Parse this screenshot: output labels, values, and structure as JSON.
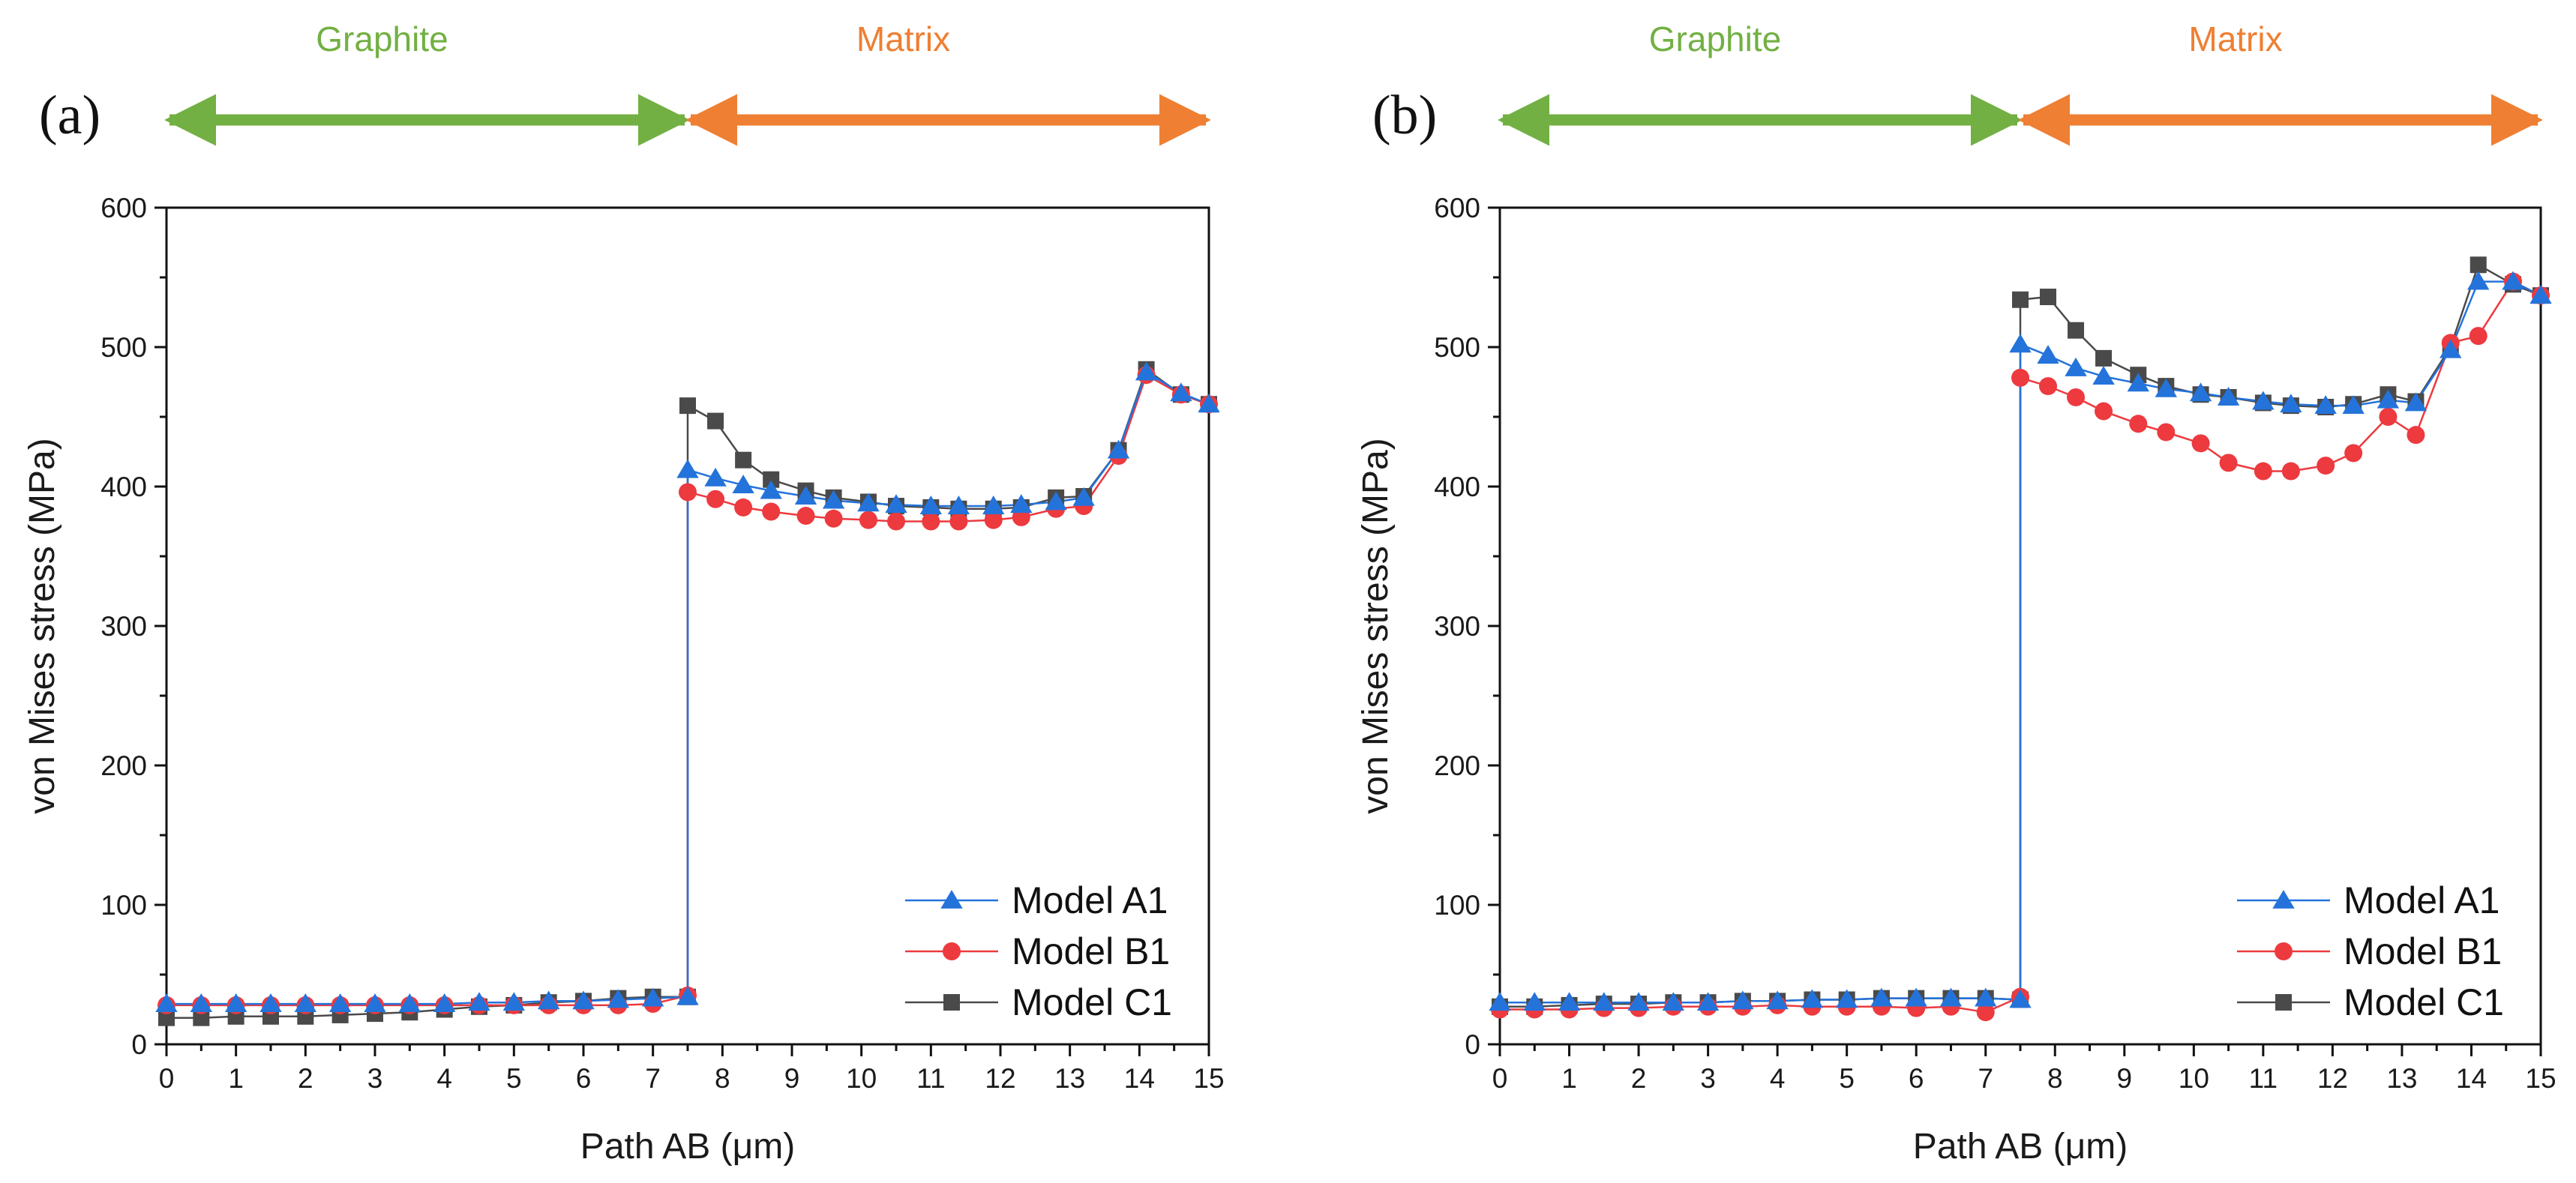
{
  "colors": {
    "graphite": "#72b043",
    "matrix": "#ee7f33",
    "model_a1": "#2473db",
    "model_b1": "#ec3a3f",
    "model_c1": "#4a4a4a"
  },
  "chart_data": [
    {
      "panel_label": "(a)",
      "type": "line",
      "xlabel": "Path AB (μm)",
      "ylabel": "von Mises stress (MPa)",
      "xlim": [
        0,
        15
      ],
      "ylim": [
        0,
        600
      ],
      "xticks": [
        0,
        1,
        2,
        3,
        4,
        5,
        6,
        7,
        8,
        9,
        10,
        11,
        12,
        13,
        14,
        15
      ],
      "yticks": [
        0,
        100,
        200,
        300,
        400,
        500,
        600
      ],
      "grid": false,
      "legend_position": "bottom-right",
      "regions": [
        {
          "label": "Graphite",
          "x_start": 0,
          "x_end": 7.5,
          "color": "#72b043"
        },
        {
          "label": "Matrix",
          "x_start": 7.5,
          "x_end": 15,
          "color": "#ee7f33"
        }
      ],
      "series": [
        {
          "name": "Model A1",
          "color": "#2473db",
          "marker": "triangle",
          "x": [
            0,
            0.5,
            1,
            1.5,
            2,
            2.5,
            3,
            3.5,
            4,
            4.5,
            5,
            5.5,
            6,
            6.5,
            7,
            7.5,
            7.5,
            7.9,
            8.3,
            8.7,
            9.2,
            9.6,
            10.1,
            10.5,
            11,
            11.4,
            11.9,
            12.3,
            12.8,
            13.2,
            13.7,
            14.1,
            14.6,
            15
          ],
          "y": [
            29,
            29,
            29,
            29,
            29,
            29,
            29,
            29,
            29,
            30,
            30,
            31,
            31,
            32,
            33,
            34,
            412,
            406,
            401,
            397,
            393,
            390,
            388,
            387,
            386,
            386,
            386,
            387,
            389,
            392,
            426,
            482,
            467,
            459
          ]
        },
        {
          "name": "Model B1",
          "color": "#ec3a3f",
          "marker": "circle",
          "x": [
            0,
            0.5,
            1,
            1.5,
            2,
            2.5,
            3,
            3.5,
            4,
            4.5,
            5,
            5.5,
            6,
            6.5,
            7,
            7.5,
            7.5,
            7.9,
            8.3,
            8.7,
            9.2,
            9.6,
            10.1,
            10.5,
            11,
            11.4,
            11.9,
            12.3,
            12.8,
            13.2,
            13.7,
            14.1,
            14.6,
            15
          ],
          "y": [
            28,
            28,
            28,
            28,
            28,
            28,
            28,
            28,
            28,
            28,
            28,
            28,
            28,
            28,
            29,
            35,
            396,
            391,
            385,
            382,
            379,
            377,
            376,
            375,
            375,
            375,
            376,
            378,
            384,
            386,
            422,
            480,
            466,
            459
          ]
        },
        {
          "name": "Model C1",
          "color": "#4a4a4a",
          "marker": "square",
          "x": [
            0,
            0.5,
            1,
            1.5,
            2,
            2.5,
            3,
            3.5,
            4,
            4.5,
            5,
            5.5,
            6,
            6.5,
            7,
            7.5,
            7.5,
            7.9,
            8.3,
            8.7,
            9.2,
            9.6,
            10.1,
            10.5,
            11,
            11.4,
            11.9,
            12.3,
            12.8,
            13.2,
            13.7,
            14.1,
            14.6,
            15
          ],
          "y": [
            19,
            19,
            20,
            20,
            20,
            21,
            22,
            23,
            25,
            27,
            28,
            30,
            31,
            33,
            34,
            34,
            458,
            447,
            419,
            405,
            397,
            392,
            389,
            386,
            385,
            384,
            384,
            385,
            392,
            393,
            426,
            484,
            466,
            459
          ]
        }
      ]
    },
    {
      "panel_label": "(b)",
      "type": "line",
      "xlabel": "Path AB (μm)",
      "ylabel": "von Mises stress (MPa)",
      "xlim": [
        0,
        15
      ],
      "ylim": [
        0,
        600
      ],
      "xticks": [
        0,
        1,
        2,
        3,
        4,
        5,
        6,
        7,
        8,
        9,
        10,
        11,
        12,
        13,
        14,
        15
      ],
      "yticks": [
        0,
        100,
        200,
        300,
        400,
        500,
        600
      ],
      "grid": false,
      "legend_position": "bottom-right",
      "regions": [
        {
          "label": "Graphite",
          "x_start": 0,
          "x_end": 7.5,
          "color": "#72b043"
        },
        {
          "label": "Matrix",
          "x_start": 7.5,
          "x_end": 15,
          "color": "#ee7f33"
        }
      ],
      "series": [
        {
          "name": "Model A1",
          "color": "#2473db",
          "marker": "triangle",
          "x": [
            0,
            0.5,
            1,
            1.5,
            2,
            2.5,
            3,
            3.5,
            4,
            4.5,
            5,
            5.5,
            6,
            6.5,
            7,
            7.5,
            7.5,
            7.9,
            8.3,
            8.7,
            9.2,
            9.6,
            10.1,
            10.5,
            11,
            11.4,
            11.9,
            12.3,
            12.8,
            13.2,
            13.7,
            14.1,
            14.6,
            15
          ],
          "y": [
            30,
            30,
            30,
            30,
            30,
            30,
            30,
            31,
            31,
            32,
            32,
            33,
            33,
            33,
            33,
            32,
            502,
            494,
            485,
            479,
            474,
            470,
            467,
            464,
            461,
            459,
            458,
            458,
            462,
            460,
            498,
            547,
            547,
            537
          ]
        },
        {
          "name": "Model B1",
          "color": "#ec3a3f",
          "marker": "circle",
          "x": [
            0,
            0.5,
            1,
            1.5,
            2,
            2.5,
            3,
            3.5,
            4,
            4.5,
            5,
            5.5,
            6,
            6.5,
            7,
            7.5,
            7.5,
            7.9,
            8.3,
            8.7,
            9.2,
            9.6,
            10.1,
            10.5,
            11,
            11.4,
            11.9,
            12.3,
            12.8,
            13.2,
            13.7,
            14.1,
            14.6,
            15
          ],
          "y": [
            25,
            25,
            25,
            26,
            26,
            27,
            27,
            27,
            28,
            27,
            27,
            27,
            26,
            27,
            23,
            34,
            478,
            472,
            464,
            454,
            445,
            439,
            431,
            417,
            411,
            411,
            415,
            424,
            450,
            437,
            503,
            508,
            547,
            537
          ]
        },
        {
          "name": "Model C1",
          "color": "#4a4a4a",
          "marker": "square",
          "x": [
            0,
            0.5,
            1,
            1.5,
            2,
            2.5,
            3,
            3.5,
            4,
            4.5,
            5,
            5.5,
            6,
            6.5,
            7,
            7.5,
            7.5,
            7.9,
            8.3,
            8.7,
            9.2,
            9.6,
            10.1,
            10.5,
            11,
            11.4,
            11.9,
            12.3,
            12.8,
            13.2,
            13.7,
            14.1,
            14.6,
            15
          ],
          "y": [
            27,
            27,
            28,
            29,
            29,
            30,
            30,
            31,
            31,
            32,
            32,
            33,
            33,
            33,
            33,
            32,
            534,
            536,
            512,
            492,
            480,
            472,
            466,
            464,
            460,
            458,
            457,
            459,
            466,
            461,
            500,
            559,
            545,
            537
          ]
        }
      ]
    }
  ]
}
